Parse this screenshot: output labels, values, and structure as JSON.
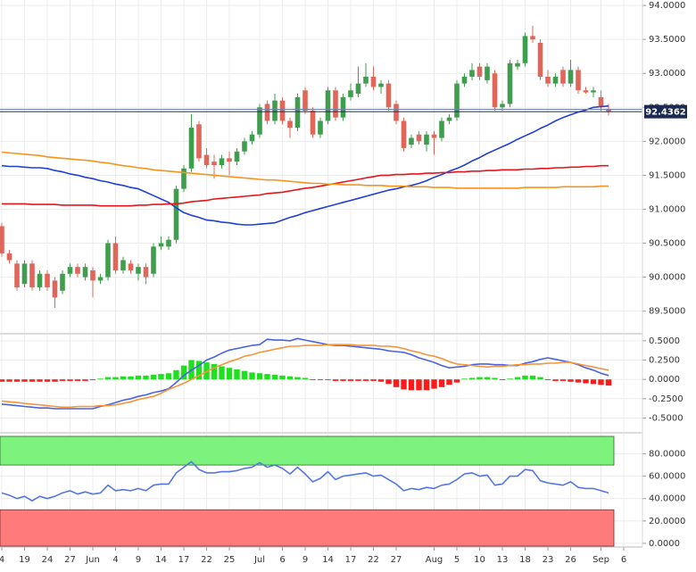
{
  "chart_data": [
    {
      "type": "candlestick",
      "grid": true,
      "up_color": "#3f9e4d",
      "down_color": "#e0665a",
      "ylim": [
        89.18,
        94.08
      ],
      "yticks": [
        {
          "value": 94,
          "label": "94.0000"
        },
        {
          "value": 93.5,
          "label": "93.5000"
        },
        {
          "value": 93,
          "label": "93.0000"
        },
        {
          "value": 92.5,
          "label": "92.5000"
        },
        {
          "value": 92,
          "label": "92.0000"
        },
        {
          "value": 91.5,
          "label": "91.5000"
        },
        {
          "value": 91,
          "label": "91.0000"
        },
        {
          "value": 90.5,
          "label": "90.5000"
        },
        {
          "value": 90,
          "label": "90.0000"
        },
        {
          "value": 89.5,
          "label": "89.5000"
        }
      ],
      "last_price": 92.4362,
      "last_price_color": "#1c2a52",
      "reference_line": 92.47,
      "open": [
        90.75,
        90.35,
        90.2,
        89.9,
        90.2,
        89.85,
        90.05,
        89.95,
        89.8,
        90.05,
        90.15,
        90.0,
        90.1,
        89.95,
        90.0,
        90.5,
        90.1,
        90.2,
        90.05,
        90.15,
        90.05,
        90.45,
        90.45,
        90.55,
        91.3,
        91.6,
        92.25,
        91.8,
        91.7,
        91.65,
        91.75,
        91.7,
        91.85,
        92.0,
        92.1,
        92.55,
        92.3,
        92.6,
        92.3,
        92.2,
        92.75,
        92.45,
        92.1,
        92.3,
        92.75,
        92.35,
        92.65,
        92.7,
        92.85,
        92.95,
        92.8,
        92.85,
        92.55,
        92.3,
        91.95,
        92.1,
        91.95,
        92.1,
        92.05,
        92.3,
        92.35,
        92.85,
        92.95,
        93.1,
        92.9,
        93.0,
        92.5,
        92.55,
        93.1,
        93.15,
        93.55,
        93.45,
        92.95,
        92.85,
        93.05,
        92.85,
        93.05,
        92.75,
        92.72,
        92.65,
        92.48,
        null,
        null,
        null
      ],
      "high": [
        90.8,
        90.4,
        90.25,
        90.25,
        90.25,
        90.1,
        90.1,
        90.0,
        90.1,
        90.2,
        90.2,
        90.2,
        90.15,
        90.05,
        90.55,
        90.6,
        90.3,
        90.25,
        90.2,
        90.2,
        90.5,
        90.6,
        90.6,
        91.35,
        91.65,
        92.4,
        92.3,
        91.9,
        91.8,
        91.8,
        91.85,
        91.9,
        92.05,
        92.15,
        92.55,
        92.6,
        92.7,
        92.65,
        92.35,
        92.7,
        92.8,
        92.5,
        92.35,
        92.8,
        92.8,
        92.7,
        92.85,
        93.1,
        93.15,
        93.1,
        92.9,
        92.9,
        92.6,
        92.35,
        92.1,
        92.15,
        92.15,
        92.15,
        92.35,
        92.4,
        92.9,
        93.0,
        93.15,
        93.15,
        93.15,
        93.05,
        92.6,
        93.2,
        93.2,
        93.6,
        93.7,
        93.5,
        93.05,
        93.0,
        93.1,
        93.2,
        93.1,
        92.8,
        92.8,
        92.75,
        92.55,
        null,
        null,
        null
      ],
      "low": [
        90.3,
        90.2,
        89.8,
        89.85,
        89.8,
        89.8,
        89.8,
        89.55,
        89.75,
        90.0,
        90.0,
        89.95,
        89.7,
        89.9,
        89.95,
        90.05,
        90.05,
        90.05,
        89.95,
        89.9,
        90.0,
        90.4,
        90.4,
        90.5,
        91.25,
        91.55,
        91.7,
        91.6,
        91.45,
        91.6,
        91.5,
        91.65,
        91.8,
        91.95,
        92.05,
        92.25,
        92.25,
        92.25,
        92.05,
        92.15,
        92.4,
        92.05,
        92.05,
        92.25,
        92.3,
        92.3,
        92.6,
        92.65,
        92.8,
        92.75,
        92.7,
        92.45,
        92.25,
        91.85,
        91.9,
        91.95,
        91.85,
        91.8,
        92.0,
        92.25,
        92.3,
        92.8,
        92.9,
        92.9,
        92.85,
        92.45,
        92.45,
        92.5,
        93.05,
        93.1,
        93.45,
        92.9,
        92.8,
        92.8,
        92.8,
        92.8,
        92.7,
        92.7,
        92.65,
        92.45,
        92.38,
        null,
        null,
        null
      ],
      "close": [
        90.35,
        90.25,
        89.85,
        90.2,
        89.85,
        90.05,
        89.85,
        89.7,
        90.05,
        90.15,
        90.05,
        90.15,
        89.95,
        90.0,
        90.5,
        90.1,
        90.25,
        90.1,
        90.15,
        90.0,
        90.45,
        90.5,
        90.55,
        91.3,
        91.6,
        92.2,
        91.75,
        91.65,
        91.65,
        91.75,
        91.7,
        91.85,
        92.0,
        92.1,
        92.5,
        92.3,
        92.6,
        92.3,
        92.2,
        92.65,
        92.45,
        92.1,
        92.3,
        92.75,
        92.35,
        92.65,
        92.75,
        92.85,
        92.95,
        92.8,
        92.85,
        92.5,
        92.3,
        91.9,
        92.05,
        92.0,
        92.1,
        92.05,
        92.3,
        92.35,
        92.85,
        92.95,
        93.05,
        92.95,
        93.1,
        92.5,
        92.55,
        93.15,
        93.15,
        93.55,
        93.5,
        92.95,
        92.85,
        92.95,
        92.85,
        93.05,
        92.75,
        92.72,
        92.75,
        92.5,
        92.44,
        null,
        null,
        null
      ],
      "series": [
        {
          "color": "#1f3fd6",
          "values": [
            91.64,
            91.63,
            91.63,
            91.62,
            91.61,
            91.61,
            91.6,
            91.57,
            91.55,
            91.52,
            91.5,
            91.47,
            91.45,
            91.42,
            91.4,
            91.37,
            91.35,
            91.32,
            91.3,
            91.25,
            91.2,
            91.15,
            91.1,
            91.02,
            90.95,
            90.91,
            90.88,
            90.84,
            90.83,
            90.81,
            90.8,
            90.78,
            90.77,
            90.77,
            90.78,
            90.79,
            90.8,
            90.84,
            90.88,
            90.91,
            90.95,
            90.98,
            91.01,
            91.04,
            91.07,
            91.1,
            91.13,
            91.16,
            91.19,
            91.22,
            91.25,
            91.28,
            91.3,
            91.33,
            91.35,
            91.38,
            91.42,
            91.47,
            91.51,
            91.56,
            91.6,
            91.65,
            91.71,
            91.76,
            91.82,
            91.87,
            91.92,
            91.97,
            92.03,
            92.08,
            92.13,
            92.19,
            92.24,
            92.3,
            92.35,
            92.39,
            92.43,
            92.46,
            92.5,
            92.51,
            92.52,
            null,
            null,
            null
          ]
        },
        {
          "color": "#e5151c",
          "values": [
            91.08,
            91.08,
            91.08,
            91.08,
            91.07,
            91.07,
            91.07,
            91.07,
            91.06,
            91.06,
            91.06,
            91.06,
            91.06,
            91.05,
            91.05,
            91.05,
            91.05,
            91.05,
            91.06,
            91.06,
            91.07,
            91.07,
            91.08,
            91.08,
            91.09,
            91.11,
            91.12,
            91.13,
            91.15,
            91.16,
            91.17,
            91.18,
            91.19,
            91.2,
            91.21,
            91.23,
            91.24,
            91.25,
            91.27,
            91.29,
            91.31,
            91.32,
            91.34,
            91.36,
            91.38,
            91.4,
            91.42,
            91.44,
            91.46,
            91.48,
            91.5,
            91.5,
            91.51,
            91.51,
            91.52,
            91.52,
            91.53,
            91.53,
            91.54,
            91.54,
            91.55,
            91.55,
            91.56,
            91.56,
            91.57,
            91.57,
            91.58,
            91.58,
            91.58,
            91.59,
            91.59,
            91.6,
            91.6,
            91.61,
            91.61,
            91.62,
            91.62,
            91.63,
            91.63,
            91.64,
            91.64,
            null,
            null,
            null
          ]
        },
        {
          "color": "#f7941d",
          "values": [
            91.84,
            91.83,
            91.82,
            91.81,
            91.8,
            91.79,
            91.77,
            91.76,
            91.75,
            91.74,
            91.73,
            91.72,
            91.71,
            91.69,
            91.68,
            91.66,
            91.64,
            91.63,
            91.61,
            91.6,
            91.58,
            91.57,
            91.56,
            91.55,
            91.54,
            91.53,
            91.52,
            91.51,
            91.5,
            91.49,
            91.48,
            91.47,
            91.46,
            91.45,
            91.44,
            91.43,
            91.43,
            91.42,
            91.41,
            91.4,
            91.39,
            91.38,
            91.38,
            91.37,
            91.37,
            91.36,
            91.36,
            91.36,
            91.35,
            91.35,
            91.35,
            91.34,
            91.34,
            91.34,
            91.33,
            91.33,
            91.33,
            91.32,
            91.32,
            91.32,
            91.31,
            91.31,
            91.31,
            91.31,
            91.31,
            91.31,
            91.31,
            91.31,
            91.31,
            91.32,
            91.32,
            91.32,
            91.32,
            91.32,
            91.33,
            91.33,
            91.33,
            91.33,
            91.33,
            91.34,
            91.34,
            null,
            null,
            null
          ]
        }
      ]
    },
    {
      "type": "macd",
      "grid": true,
      "ylim": [
        -0.68,
        0.58
      ],
      "yticks": [
        {
          "value": 0.5,
          "label": "0.5000"
        },
        {
          "value": 0.25,
          "label": "0.2500"
        },
        {
          "value": 0,
          "label": "0.0000"
        },
        {
          "value": -0.25,
          "label": "-0.2500"
        },
        {
          "value": -0.5,
          "label": "-0.5000"
        }
      ],
      "histogram": {
        "up_color": "#1fe01f",
        "down_color": "#ff1a1a",
        "values": [
          -0.03,
          -0.03,
          -0.03,
          -0.03,
          -0.03,
          -0.03,
          -0.03,
          -0.03,
          -0.02,
          -0.02,
          -0.02,
          -0.02,
          -0.01,
          0.01,
          0.03,
          0.03,
          0.04,
          0.04,
          0.05,
          0.05,
          0.06,
          0.07,
          0.08,
          0.12,
          0.18,
          0.25,
          0.24,
          0.22,
          0.2,
          0.17,
          0.15,
          0.13,
          0.11,
          0.09,
          0.08,
          0.07,
          0.06,
          0.05,
          0.04,
          0.03,
          0.02,
          -0.01,
          -0.01,
          -0.01,
          -0.02,
          -0.02,
          -0.02,
          -0.02,
          -0.02,
          -0.02,
          -0.03,
          -0.06,
          -0.1,
          -0.13,
          -0.14,
          -0.14,
          -0.14,
          -0.12,
          -0.1,
          -0.07,
          -0.04,
          0.01,
          0.02,
          0.03,
          0.03,
          0.02,
          -0.01,
          0.01,
          0.03,
          0.05,
          0.05,
          0.03,
          -0.01,
          -0.02,
          -0.02,
          -0.03,
          -0.04,
          -0.05,
          -0.06,
          -0.07,
          -0.08,
          null,
          null,
          null
        ]
      },
      "series": [
        {
          "color": "#4a63e0",
          "values": [
            -0.32,
            -0.33,
            -0.34,
            -0.35,
            -0.36,
            -0.37,
            -0.37,
            -0.38,
            -0.38,
            -0.38,
            -0.38,
            -0.38,
            -0.38,
            -0.35,
            -0.33,
            -0.3,
            -0.27,
            -0.25,
            -0.22,
            -0.2,
            -0.17,
            -0.15,
            -0.12,
            -0.04,
            0.05,
            0.12,
            0.18,
            0.25,
            0.29,
            0.34,
            0.38,
            0.4,
            0.42,
            0.44,
            0.45,
            0.52,
            0.51,
            0.51,
            0.5,
            0.53,
            0.51,
            0.49,
            0.47,
            0.45,
            0.44,
            0.44,
            0.43,
            0.42,
            0.41,
            0.4,
            0.39,
            0.37,
            0.36,
            0.35,
            0.32,
            0.28,
            0.25,
            0.22,
            0.18,
            0.15,
            0.16,
            0.17,
            0.19,
            0.2,
            0.2,
            0.19,
            0.19,
            0.18,
            0.18,
            0.21,
            0.23,
            0.26,
            0.28,
            0.26,
            0.24,
            0.22,
            0.19,
            0.15,
            0.12,
            0.08,
            0.05,
            null,
            null,
            null
          ]
        },
        {
          "color": "#f7943a",
          "values": [
            -0.28,
            -0.29,
            -0.3,
            -0.31,
            -0.32,
            -0.33,
            -0.34,
            -0.35,
            -0.36,
            -0.36,
            -0.35,
            -0.35,
            -0.35,
            -0.34,
            -0.34,
            -0.33,
            -0.31,
            -0.29,
            -0.26,
            -0.24,
            -0.22,
            -0.18,
            -0.13,
            -0.09,
            -0.05,
            0.0,
            0.05,
            0.1,
            0.15,
            0.19,
            0.23,
            0.26,
            0.3,
            0.32,
            0.35,
            0.37,
            0.39,
            0.41,
            0.43,
            0.43,
            0.44,
            0.44,
            0.44,
            0.45,
            0.45,
            0.45,
            0.45,
            0.44,
            0.44,
            0.44,
            0.43,
            0.43,
            0.42,
            0.4,
            0.37,
            0.35,
            0.32,
            0.3,
            0.27,
            0.23,
            0.2,
            0.19,
            0.18,
            0.17,
            0.16,
            0.17,
            0.17,
            0.18,
            0.19,
            0.19,
            0.2,
            0.2,
            0.21,
            0.21,
            0.22,
            0.22,
            0.2,
            0.18,
            0.16,
            0.14,
            0.12,
            null,
            null,
            null
          ]
        }
      ]
    },
    {
      "type": "line",
      "grid": true,
      "ylim": [
        -2.5,
        98
      ],
      "yticks": [
        {
          "value": 80,
          "label": "80.0000"
        },
        {
          "value": 60,
          "label": "60.0000"
        },
        {
          "value": 40,
          "label": "40.0000"
        },
        {
          "value": 20,
          "label": "20.0000"
        },
        {
          "value": 0,
          "label": "0.0000"
        }
      ],
      "upper_band": 70,
      "upper_band_color": "#7df27d",
      "lower_band": 30,
      "lower_band_color": "#ff7b7b",
      "categories": [
        "4",
        null,
        null,
        "19",
        null,
        null,
        "24",
        null,
        null,
        "27",
        null,
        null,
        "Jun",
        null,
        null,
        "4",
        null,
        null,
        "9",
        null,
        null,
        "14",
        null,
        null,
        "17",
        null,
        null,
        "22",
        null,
        null,
        "25",
        null,
        null,
        null,
        "Jul",
        null,
        null,
        "6",
        null,
        null,
        "9",
        null,
        null,
        "14",
        null,
        null,
        "17",
        null,
        null,
        "22",
        null,
        null,
        "27",
        null,
        null,
        null,
        null,
        "Aug",
        null,
        null,
        "5",
        null,
        null,
        "10",
        null,
        null,
        "13",
        null,
        null,
        "18",
        null,
        null,
        "23",
        null,
        null,
        "26",
        null,
        null,
        null,
        "Sep",
        null,
        null,
        "6",
        null
      ],
      "series": [
        {
          "color": "#5577e3",
          "values": [
            45,
            43,
            40,
            42,
            38,
            42,
            40,
            42,
            45,
            47,
            44,
            46,
            44,
            45,
            52,
            47,
            48,
            47,
            49,
            47,
            52,
            53,
            53,
            63,
            68,
            73,
            66,
            63,
            63,
            64,
            64,
            65,
            67,
            68,
            72,
            68,
            70,
            67,
            62,
            68,
            62,
            55,
            58,
            64,
            57,
            60,
            61,
            62,
            63,
            60,
            61,
            57,
            53,
            47,
            49,
            48,
            50,
            49,
            52,
            53,
            57,
            62,
            63,
            60,
            61,
            52,
            53,
            60,
            60,
            66,
            65,
            56,
            54,
            53,
            52,
            55,
            50,
            49,
            49,
            47,
            45,
            null,
            null,
            null
          ]
        }
      ]
    }
  ]
}
